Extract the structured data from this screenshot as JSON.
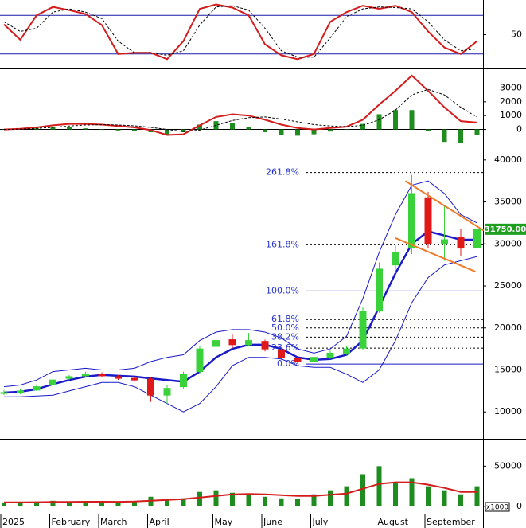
{
  "chart_data": [
    {
      "type": "line",
      "ylim": [
        -2.5,
        103.75
      ],
      "yticks": [
        50
      ],
      "levels": [
        20,
        80
      ],
      "level_color": "#1c1ca8",
      "series": [
        {
          "color": "#d41c1c",
          "style": "solid",
          "values": [
            66,
            42,
            80,
            93,
            88,
            82,
            65,
            20,
            22,
            22,
            12,
            40,
            90,
            97,
            92,
            80,
            35,
            18,
            12,
            20,
            70,
            85,
            95,
            90,
            95,
            85,
            55,
            30,
            20,
            40
          ]
        },
        {
          "color": "#000000",
          "style": "dashed",
          "values": [
            70,
            55,
            60,
            85,
            90,
            85,
            75,
            40,
            22,
            22,
            18,
            25,
            65,
            93,
            95,
            88,
            60,
            25,
            15,
            15,
            45,
            78,
            90,
            93,
            92,
            90,
            70,
            42,
            25,
            28
          ]
        }
      ]
    },
    {
      "type": "line",
      "ylim": [
        -1235,
        4353
      ],
      "yticks": [
        0,
        1000,
        2000,
        3000
      ],
      "levels": [
        0
      ],
      "level_color": "#000000",
      "series": [
        {
          "color": "#1e8c1e",
          "style": "bar",
          "values": [
            0,
            30,
            70,
            150,
            150,
            80,
            0,
            -70,
            -110,
            -200,
            -400,
            -200,
            350,
            600,
            450,
            150,
            -200,
            -400,
            -450,
            -350,
            -150,
            0,
            400,
            1100,
            1400,
            1400,
            -100,
            -900,
            -1000,
            -400
          ]
        },
        {
          "color": "#d41c1c",
          "style": "solid",
          "values": [
            0,
            50,
            150,
            300,
            400,
            400,
            350,
            250,
            150,
            -50,
            -400,
            -350,
            300,
            900,
            1100,
            1000,
            700,
            350,
            100,
            0,
            100,
            200,
            700,
            1800,
            2800,
            3900,
            2800,
            1600,
            600,
            500
          ]
        },
        {
          "color": "#000000",
          "style": "dashed",
          "values": [
            0,
            20,
            80,
            150,
            250,
            320,
            350,
            320,
            260,
            150,
            0,
            -150,
            -50,
            300,
            650,
            850,
            900,
            750,
            550,
            350,
            250,
            200,
            300,
            700,
            1400,
            2500,
            2900,
            2500,
            1600,
            900
          ]
        }
      ]
    },
    {
      "type": "candlestick",
      "ylim": [
        6800,
        41500
      ],
      "yticks": [
        10000,
        15000,
        20000,
        25000,
        30000,
        35000,
        40000
      ],
      "up_color": "#3ad23a",
      "down_color": "#e01818",
      "open": [
        12200,
        12300,
        12600,
        13200,
        14000,
        14300,
        14500,
        14200,
        14000,
        13900,
        12000,
        13000,
        14800,
        17800,
        18600,
        18000,
        18400,
        17400,
        16400,
        16000,
        16500,
        17000,
        17600,
        22000,
        27500,
        29500,
        35500,
        30000,
        30800,
        29600
      ],
      "high": [
        12600,
        12800,
        13300,
        14000,
        14400,
        14800,
        14700,
        14400,
        14200,
        14100,
        13200,
        14800,
        17900,
        19000,
        19200,
        19400,
        18600,
        17600,
        16600,
        16800,
        17300,
        17900,
        22500,
        27800,
        29800,
        38200,
        36200,
        34500,
        31800,
        33200
      ],
      "low": [
        12000,
        12100,
        12500,
        13100,
        13800,
        14100,
        14100,
        13800,
        13600,
        11200,
        11000,
        12800,
        14600,
        17500,
        17600,
        17800,
        17200,
        16200,
        15800,
        15700,
        16300,
        16800,
        17400,
        21800,
        26500,
        28800,
        29500,
        28000,
        28500,
        29000
      ],
      "close": [
        12300,
        12500,
        13000,
        13800,
        14200,
        14500,
        14300,
        14000,
        13800,
        12000,
        12800,
        14500,
        17500,
        18500,
        18000,
        18500,
        17500,
        16500,
        16000,
        16500,
        17000,
        17500,
        22000,
        27000,
        29000,
        36000,
        30000,
        30500,
        29500,
        31750
      ],
      "bands": [
        {
          "color": "#1a1ac8",
          "width": 1,
          "values": [
            13000,
            13200,
            13800,
            14800,
            15000,
            15200,
            15000,
            15000,
            15200,
            16000,
            16500,
            16800,
            18500,
            19500,
            19800,
            19800,
            19500,
            18800,
            17500,
            17000,
            17500,
            19000,
            23500,
            29000,
            33500,
            37000,
            37500,
            36000,
            33500,
            32500
          ]
        },
        {
          "color": "#1a1ac8",
          "width": 2.5,
          "values": [
            12300,
            12400,
            12700,
            13300,
            13800,
            14200,
            14400,
            14300,
            14200,
            14000,
            13800,
            13600,
            14800,
            16500,
            17500,
            18000,
            18000,
            17500,
            16500,
            16200,
            16300,
            16800,
            18500,
            22500,
            26500,
            30000,
            31500,
            31000,
            30500,
            30500
          ]
        },
        {
          "color": "#1a1ac8",
          "width": 1,
          "values": [
            11800,
            11800,
            11900,
            12000,
            12500,
            13000,
            13500,
            13500,
            13000,
            12000,
            11000,
            10000,
            11000,
            13000,
            15500,
            16500,
            16500,
            16300,
            15500,
            15300,
            15300,
            14500,
            13500,
            15000,
            18500,
            23000,
            26000,
            27500,
            28000,
            28500
          ]
        }
      ],
      "fibonacci": [
        {
          "label": "261.8%",
          "value": 38500
        },
        {
          "label": "161.8%",
          "value": 29900
        },
        {
          "label": "100.0%",
          "value": 24400
        },
        {
          "label": "61.8%",
          "value": 21000
        },
        {
          "label": "50.0%",
          "value": 20000
        },
        {
          "label": "38.2%",
          "value": 18900
        },
        {
          "label": "23.6%",
          "value": 17600
        },
        {
          "label": "0.0%",
          "value": 15700
        }
      ],
      "trendlines": [
        {
          "color": "#f07a28",
          "from": [
            24.6,
            37500
          ],
          "to": [
            29.4,
            31600
          ]
        },
        {
          "color": "#f07a28",
          "from": [
            24,
            30700
          ],
          "to": [
            28.9,
            26700
          ]
        }
      ],
      "last_price": 31750,
      "last_price_label": "31750.00",
      "last_price_color": "#1e9e1e"
    },
    {
      "type": "bar",
      "ylim": [
        -9000,
        83000
      ],
      "yticks": [
        0,
        50000
      ],
      "unit_label": "x1000",
      "color": "#1e8c1e",
      "categories": [
        "2025",
        null,
        null,
        "February",
        null,
        null,
        "March",
        null,
        null,
        "April",
        null,
        null,
        null,
        "May",
        null,
        null,
        "June",
        null,
        null,
        "July",
        null,
        null,
        null,
        "August",
        null,
        null,
        "September",
        null,
        null,
        null
      ],
      "values": [
        5000,
        5000,
        6000,
        7000,
        5000,
        6000,
        5000,
        5000,
        6000,
        12000,
        9000,
        10000,
        18000,
        20000,
        17000,
        15000,
        12000,
        10000,
        9000,
        15000,
        20000,
        25000,
        40000,
        50000,
        30000,
        35000,
        25000,
        20000,
        15000,
        25000
      ],
      "series": [
        {
          "color": "#d41c1c",
          "style": "solid",
          "values": [
            5000,
            5000,
            5200,
            5500,
            5600,
            5800,
            5800,
            5700,
            6000,
            7000,
            8000,
            9000,
            11000,
            13000,
            15000,
            15500,
            15000,
            14000,
            13000,
            13000,
            14500,
            16000,
            22000,
            28000,
            30000,
            30000,
            27000,
            23000,
            18000,
            18000
          ]
        }
      ]
    }
  ]
}
